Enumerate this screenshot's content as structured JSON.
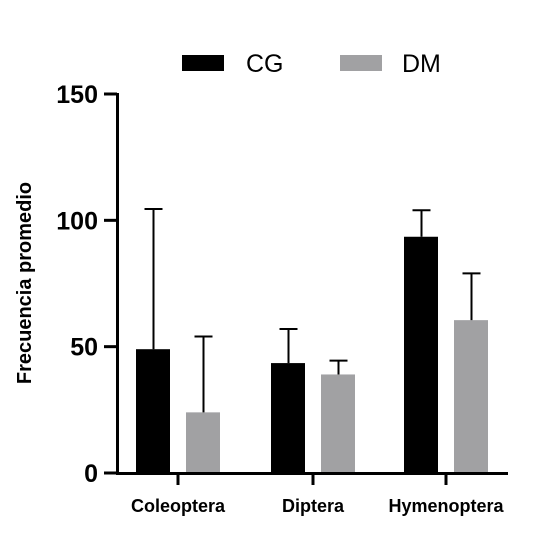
{
  "chart_data": {
    "type": "bar",
    "categories": [
      "Coleoptera",
      "Diptera",
      "Hymenoptera"
    ],
    "series": [
      {
        "name": "CG",
        "color": "#000000",
        "values": [
          49,
          43.5,
          93.5
        ],
        "error": [
          55.5,
          13.5,
          10.5
        ]
      },
      {
        "name": "DM",
        "color": "#a1a1a3",
        "values": [
          24,
          39,
          60.5
        ],
        "error": [
          30,
          5.5,
          18.5
        ]
      }
    ],
    "title": "",
    "xlabel": "",
    "ylabel": "Frecuencia promedio",
    "ylim": [
      0,
      150
    ],
    "yticks": [
      0,
      50,
      100,
      150
    ],
    "legend_position": "top",
    "grid": false
  }
}
